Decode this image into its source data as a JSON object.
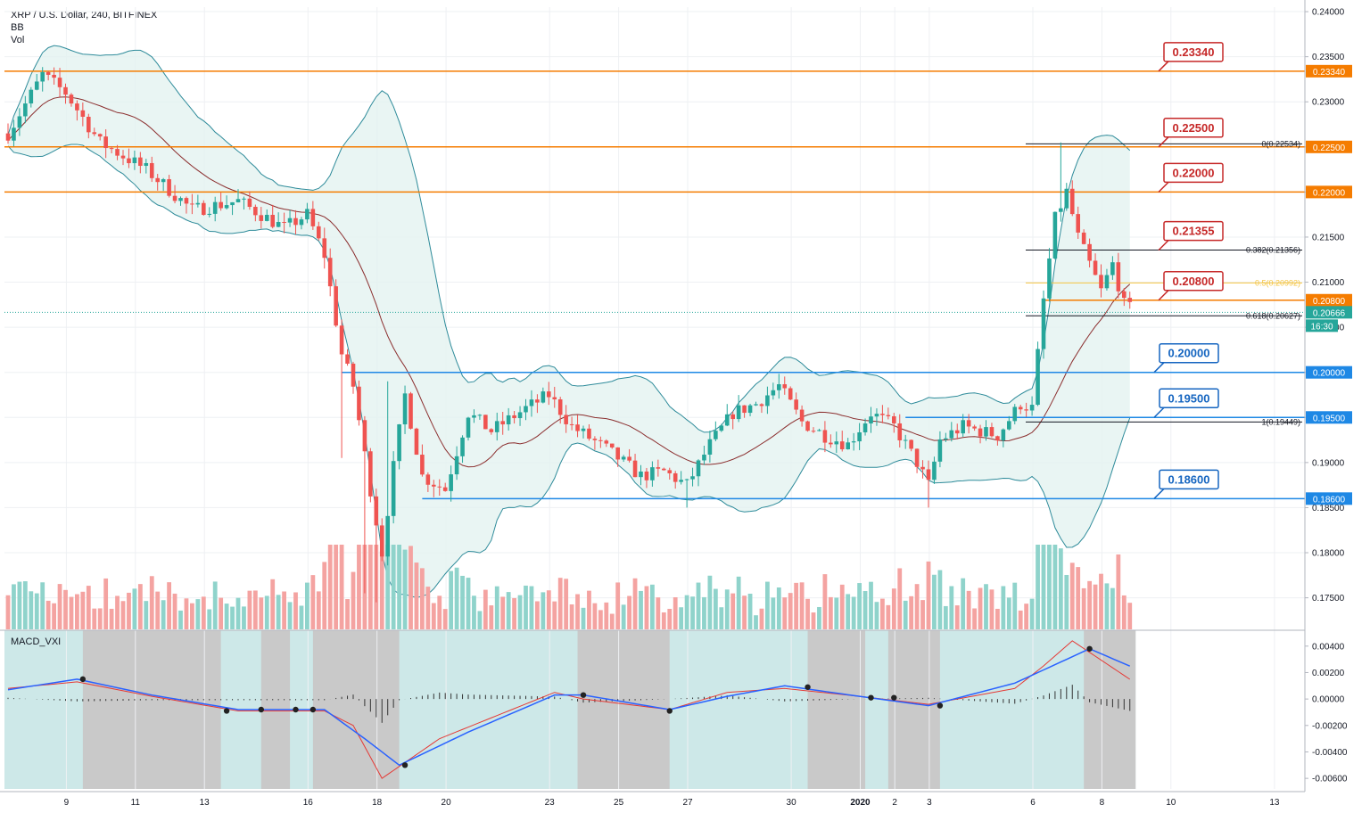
{
  "header": {
    "symbol_line": "XRP / U.S. Dollar, 240, BITFINEX",
    "indicator_bb": "BB",
    "indicator_vol": "Vol"
  },
  "macd_label": "MACD_VXI",
  "colors": {
    "up": "#26a69a",
    "down": "#ef5350",
    "vol_up": "#8fd3cb",
    "vol_down": "#f4a3a1",
    "level_orange": "#f57c00",
    "level_blue": "#1e88e5",
    "callout_red": "#c62828",
    "callout_blue": "#1565c0",
    "bb_band": "#2e8b9a",
    "bb_basis": "#8b2e2e",
    "macd_line": "#2962ff",
    "signal_line": "#e53935",
    "macd_bg_teal": "#cde8e8",
    "macd_bg_gray": "#c9c9c9",
    "fib_mid": "#f5c542"
  },
  "chart_data": {
    "type": "candlestick",
    "ylim": [
      0.1715,
      0.2405
    ],
    "price_ticks": [
      "0.24000",
      "0.23500",
      "0.23000",
      "0.22500",
      "0.22000",
      "0.21500",
      "0.21000",
      "0.20500",
      "0.20000",
      "0.19500",
      "0.19000",
      "0.18500",
      "0.18000",
      "0.17500"
    ],
    "x_ticks": [
      "9",
      "11",
      "13",
      "16",
      "18",
      "20",
      "23",
      "25",
      "27",
      "30",
      "2020",
      "2",
      "3",
      "6",
      "8",
      "10",
      "13"
    ],
    "bars_per_day": 6,
    "num_bars": 196,
    "series": [
      {
        "name": "XRP / U.S. Dollar",
        "kind": "ohlc",
        "keypoints": [
          [
            0,
            0.2265
          ],
          [
            6,
            0.233
          ],
          [
            10,
            0.231
          ],
          [
            16,
            0.2255
          ],
          [
            24,
            0.2225
          ],
          [
            32,
            0.218
          ],
          [
            40,
            0.219
          ],
          [
            48,
            0.216
          ],
          [
            52,
            0.2175
          ],
          [
            55,
            0.213
          ],
          [
            58,
            0.202
          ],
          [
            60,
            0.1985
          ],
          [
            63,
            0.187
          ],
          [
            65,
            0.18
          ],
          [
            67,
            0.1895
          ],
          [
            69,
            0.1975
          ],
          [
            72,
            0.1885
          ],
          [
            76,
            0.187
          ],
          [
            80,
            0.1955
          ],
          [
            84,
            0.1935
          ],
          [
            90,
            0.196
          ],
          [
            94,
            0.1975
          ],
          [
            98,
            0.194
          ],
          [
            104,
            0.1915
          ],
          [
            110,
            0.1885
          ],
          [
            114,
            0.189
          ],
          [
            118,
            0.1875
          ],
          [
            122,
            0.192
          ],
          [
            126,
            0.1955
          ],
          [
            130,
            0.1965
          ],
          [
            134,
            0.1985
          ],
          [
            138,
            0.1945
          ],
          [
            142,
            0.193
          ],
          [
            146,
            0.192
          ],
          [
            150,
            0.1955
          ],
          [
            154,
            0.194
          ],
          [
            158,
            0.19
          ],
          [
            160,
            0.1875
          ],
          [
            162,
            0.1925
          ],
          [
            166,
            0.194
          ],
          [
            172,
            0.193
          ],
          [
            176,
            0.1965
          ],
          [
            178,
            0.196
          ],
          [
            180,
            0.208
          ],
          [
            182,
            0.217
          ],
          [
            184,
            0.22
          ],
          [
            186,
            0.215
          ],
          [
            190,
            0.209
          ],
          [
            192,
            0.212
          ],
          [
            194,
            0.2075
          ],
          [
            196,
            0.2067
          ]
        ]
      }
    ],
    "horizontal_levels": [
      {
        "value": 0.2334,
        "label": "0.23340",
        "color": "orange"
      },
      {
        "value": 0.225,
        "label": "0.22500",
        "color": "orange"
      },
      {
        "value": 0.22,
        "label": "0.22000",
        "color": "orange"
      },
      {
        "value": 0.208,
        "label": "0.20800",
        "color": "orange"
      },
      {
        "value": 0.2,
        "label": "0.20000",
        "color": "blue"
      },
      {
        "value": 0.195,
        "label": "0.19500",
        "color": "blue"
      },
      {
        "value": 0.186,
        "label": "0.18600",
        "color": "blue"
      }
    ],
    "callouts": [
      {
        "value": 0.2334,
        "text": "0.23340",
        "color": "red"
      },
      {
        "value": 0.225,
        "text": "0.22500",
        "color": "red"
      },
      {
        "value": 0.22,
        "text": "0.22000",
        "color": "red"
      },
      {
        "value": 0.21355,
        "text": "0.21355",
        "color": "red"
      },
      {
        "value": 0.208,
        "text": "0.20800",
        "color": "red"
      },
      {
        "value": 0.2,
        "text": "0.20000",
        "color": "blue"
      },
      {
        "value": 0.195,
        "text": "0.19500",
        "color": "blue"
      },
      {
        "value": 0.186,
        "text": "0.18600",
        "color": "blue"
      }
    ],
    "fib_levels": [
      {
        "value": 0.22534,
        "text": "0(0.22534)"
      },
      {
        "value": 0.21356,
        "text": "0.382(0.21356)"
      },
      {
        "value": 0.20992,
        "text": "0.5(0.20992)"
      },
      {
        "value": 0.20627,
        "text": "0.618(0.20627)"
      },
      {
        "value": 0.19449,
        "text": "1(0.19449)"
      }
    ],
    "current_price": {
      "value": 0.20666,
      "label": "0.20666",
      "countdown": "16:30"
    },
    "macd": {
      "ylim": [
        -0.0068,
        0.0052
      ],
      "ticks": [
        "0.00400",
        "0.00200",
        "0.00000",
        "-0.00200",
        "-0.00400",
        "-0.00600"
      ],
      "macd_keypoints": [
        [
          0,
          0.0007
        ],
        [
          12,
          0.0015
        ],
        [
          25,
          0.0003
        ],
        [
          40,
          -0.0008
        ],
        [
          55,
          -0.0008
        ],
        [
          62,
          -0.003
        ],
        [
          68,
          -0.005
        ],
        [
          80,
          -0.0025
        ],
        [
          95,
          0.0003
        ],
        [
          100,
          0.0003
        ],
        [
          115,
          -0.0008
        ],
        [
          125,
          0.0002
        ],
        [
          135,
          0.001
        ],
        [
          148,
          0.0002
        ],
        [
          160,
          -0.0005
        ],
        [
          175,
          0.0012
        ],
        [
          183,
          0.0028
        ],
        [
          188,
          0.0038
        ],
        [
          196,
          0.0023
        ]
      ],
      "signal_keypoints": [
        [
          0,
          0.0008
        ],
        [
          12,
          0.0013
        ],
        [
          25,
          0.0002
        ],
        [
          40,
          -0.0009
        ],
        [
          55,
          -0.0009
        ],
        [
          60,
          -0.002
        ],
        [
          65,
          -0.006
        ],
        [
          75,
          -0.003
        ],
        [
          95,
          0.0005
        ],
        [
          100,
          0.0
        ],
        [
          115,
          -0.0008
        ],
        [
          125,
          0.0005
        ],
        [
          135,
          0.0008
        ],
        [
          148,
          0.0002
        ],
        [
          160,
          -0.0004
        ],
        [
          175,
          0.0008
        ],
        [
          180,
          0.0025
        ],
        [
          185,
          0.0044
        ],
        [
          196,
          0.0012
        ]
      ],
      "gray_zones": [
        [
          13,
          37
        ],
        [
          44,
          49
        ],
        [
          53,
          68
        ],
        [
          99,
          115
        ],
        [
          139,
          149
        ],
        [
          153,
          162
        ],
        [
          187,
          196
        ]
      ],
      "dots": [
        [
          13,
          0.0015
        ],
        [
          38,
          -0.0009
        ],
        [
          44,
          -0.0008
        ],
        [
          50,
          -0.0008
        ],
        [
          53,
          -0.0008
        ],
        [
          69,
          -0.005
        ],
        [
          100,
          0.0003
        ],
        [
          115,
          -0.0009
        ],
        [
          139,
          0.0009
        ],
        [
          150,
          0.0001
        ],
        [
          154,
          0.0001
        ],
        [
          162,
          -0.0005
        ],
        [
          188,
          0.0038
        ]
      ]
    }
  }
}
